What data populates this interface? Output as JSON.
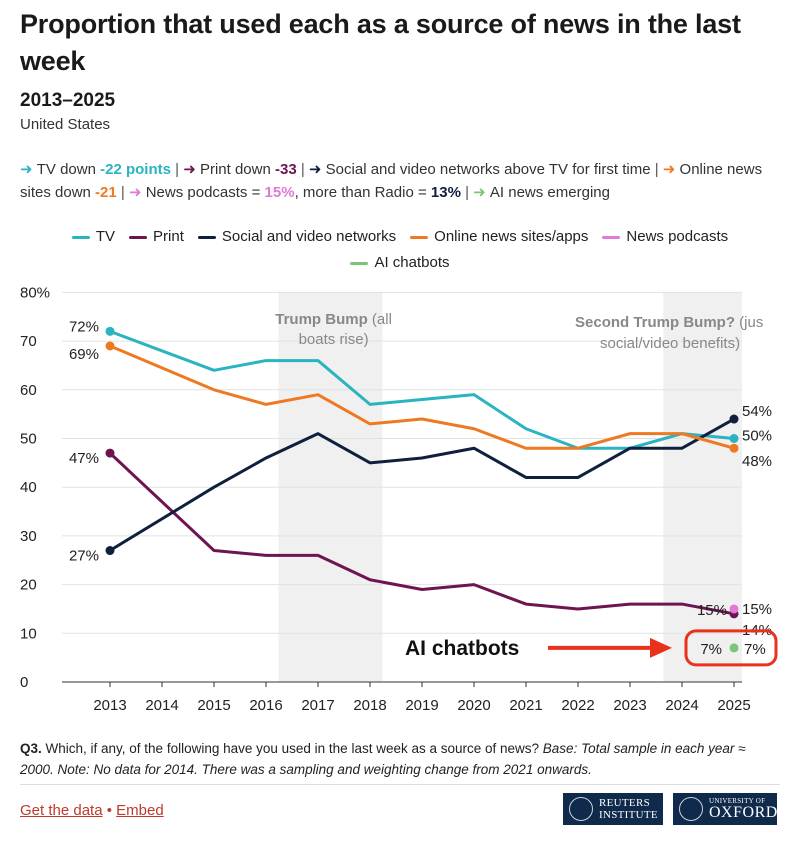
{
  "header": {
    "title": "Proportion that used each as a source of news in the last week",
    "subtitle": "2013–2025",
    "region": "United States"
  },
  "notes": [
    {
      "arrow": "➜",
      "color": "#2ab3c0",
      "text": "TV down ",
      "highlight": "-22 points",
      "sep": " | "
    },
    {
      "arrow": "➜",
      "color": "#6d1451",
      "text": "Print down ",
      "highlight": "-33",
      "sep": " | "
    },
    {
      "arrow": "➜",
      "color": "#0f1f3d",
      "text": "Social and video networks above TV for first time",
      "highlight": "",
      "sep": " | "
    },
    {
      "arrow": "➜",
      "color": "#ef7922",
      "text": "Online news sites down ",
      "highlight": "-21",
      "sep": " | "
    },
    {
      "arrow": "➜",
      "color": "#e07ad6",
      "text": "News podcasts = ",
      "highlight": "15%",
      "text2": ", more than Radio = ",
      "highlight2": "13%",
      "highlight2_color": "#0f1f3d",
      "sep": " | "
    },
    {
      "arrow": "➜",
      "color": "#7cc576",
      "text": "AI news emerging",
      "highlight": "",
      "sep": ""
    }
  ],
  "chart_data": {
    "type": "line",
    "x": [
      2013,
      2014,
      2015,
      2016,
      2017,
      2018,
      2019,
      2020,
      2021,
      2022,
      2023,
      2024,
      2025
    ],
    "ylim": [
      0,
      80
    ],
    "yticks": [
      0,
      10,
      20,
      30,
      40,
      50,
      60,
      70,
      80
    ],
    "ytick_labels": [
      "0",
      "10",
      "20",
      "30",
      "40",
      "50",
      "60",
      "70",
      "80%"
    ],
    "grid": true,
    "legend_position": "top",
    "series": [
      {
        "name": "TV",
        "color": "#2ab3c0",
        "values": [
          72,
          null,
          64,
          66,
          66,
          57,
          58,
          59,
          52,
          48,
          48,
          51,
          50
        ],
        "start_label": "72%",
        "end_label": "50%"
      },
      {
        "name": "Print",
        "color": "#6d1451",
        "values": [
          47,
          null,
          27,
          26,
          26,
          21,
          19,
          20,
          16,
          15,
          16,
          16,
          14
        ],
        "start_label": "47%",
        "end_label": "14%"
      },
      {
        "name": "Social and video networks",
        "color": "#0f1f3d",
        "values": [
          27,
          null,
          40,
          46,
          51,
          45,
          46,
          48,
          42,
          42,
          48,
          48,
          54
        ],
        "start_label": "27%",
        "end_label": "54%"
      },
      {
        "name": "Online news sites/apps",
        "color": "#ef7922",
        "values": [
          69,
          null,
          60,
          57,
          59,
          53,
          54,
          52,
          48,
          48,
          51,
          51,
          48
        ],
        "start_label": "69%",
        "end_label": "48%"
      },
      {
        "name": "News podcasts",
        "color": "#e07ad6",
        "values": [
          null,
          null,
          null,
          null,
          null,
          null,
          null,
          null,
          null,
          null,
          null,
          null,
          15
        ],
        "start_label": "15%",
        "end_label": "15%"
      },
      {
        "name": "AI chatbots",
        "color": "#7cc576",
        "values": [
          null,
          null,
          null,
          null,
          null,
          null,
          null,
          null,
          null,
          null,
          null,
          null,
          7
        ],
        "start_label": "7%",
        "end_label": "7%"
      }
    ],
    "annotations": [
      {
        "bold": "Trump Bump",
        "text": " (all boats rise)",
        "x_range": [
          2016.3,
          2017.3,
          2018.3
        ]
      },
      {
        "bold": "Second Trump Bump?",
        "text": " (just social/video benefits)",
        "x_range": [
          2023.6,
          2025.2
        ]
      },
      {
        "callout": "AI chatbots",
        "color": "#e8321e"
      }
    ]
  },
  "footer": {
    "q_label": "Q3.",
    "question": " Which, if any, of the following have you used in the last week as a source of news? ",
    "base": "Base: Total sample in each year ≈ 2000. Note: No data for 2014. There was a sampling and weighting change from 2021 onwards.",
    "get_data": "Get the data",
    "dot": " • ",
    "embed": "Embed",
    "logo1_line1": "REUTERS",
    "logo1_line2": "INSTITUTE",
    "logo2_line1": "UNIVERSITY OF",
    "logo2_line2": "OXFORD"
  }
}
